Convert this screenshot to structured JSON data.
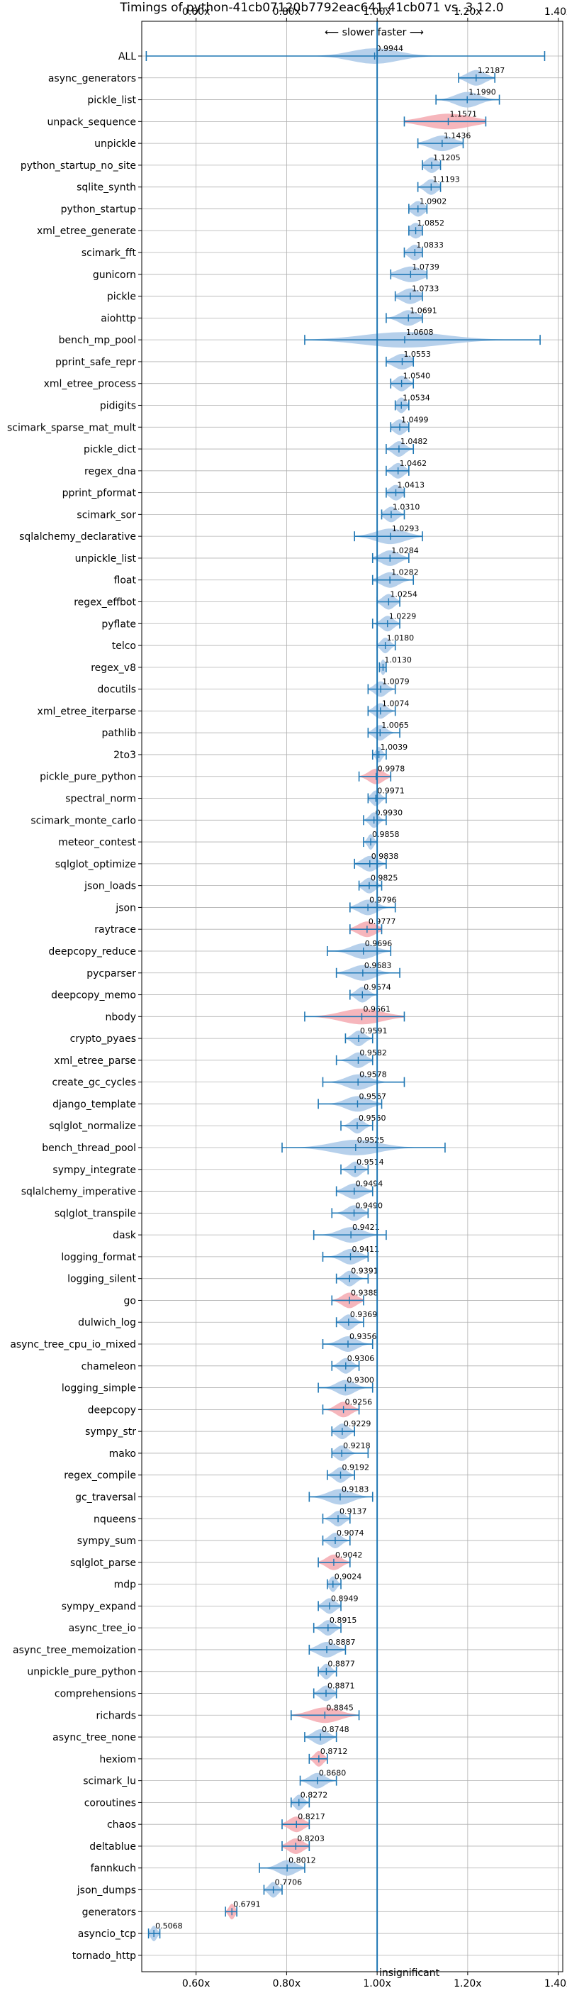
{
  "chart_data": {
    "type": "violin",
    "title": "Timings of python-41cb07120b7792eac641-41cb071 vs. 3.12.0",
    "direction_label": "⟵ slower   faster ⟶",
    "x_ticks": [
      "0.60x",
      "0.80x",
      "1.00x",
      "1.20x",
      "1.40x"
    ],
    "x_tick_values": [
      0.6,
      0.8,
      1.0,
      1.2,
      1.4
    ],
    "xlim": [
      0.48,
      1.41
    ],
    "reference_line": 1.0,
    "grid": true,
    "colors": {
      "faster": "#a9c8e8",
      "slower": "#f4a9b0",
      "line": "#1f77b4",
      "grid": "#b0b0b0"
    },
    "footnote": "insignificant",
    "benchmarks": [
      {
        "name": "ALL",
        "value": 0.9944,
        "label": "0.9944",
        "lo": 0.49,
        "hi": 1.37,
        "spread": 0.08,
        "slower": false
      },
      {
        "name": "async_generators",
        "value": 1.2187,
        "label": "1.2187",
        "lo": 1.18,
        "hi": 1.26,
        "spread": 0.03,
        "slower": false
      },
      {
        "name": "pickle_list",
        "value": 1.199,
        "label": "1.1990",
        "lo": 1.13,
        "hi": 1.27,
        "spread": 0.04,
        "slower": false
      },
      {
        "name": "unpack_sequence",
        "value": 1.1571,
        "label": "1.1571",
        "lo": 1.06,
        "hi": 1.24,
        "spread": 0.08,
        "slower": true
      },
      {
        "name": "unpickle",
        "value": 1.1436,
        "label": "1.1436",
        "lo": 1.09,
        "hi": 1.19,
        "spread": 0.04,
        "slower": false
      },
      {
        "name": "python_startup_no_site",
        "value": 1.1205,
        "label": "1.1205",
        "lo": 1.1,
        "hi": 1.14,
        "spread": 0.02,
        "slower": false
      },
      {
        "name": "sqlite_synth",
        "value": 1.1193,
        "label": "1.1193",
        "lo": 1.09,
        "hi": 1.14,
        "spread": 0.02,
        "slower": false
      },
      {
        "name": "python_startup",
        "value": 1.0902,
        "label": "1.0902",
        "lo": 1.07,
        "hi": 1.11,
        "spread": 0.02,
        "slower": false
      },
      {
        "name": "xml_etree_generate",
        "value": 1.0852,
        "label": "1.0852",
        "lo": 1.07,
        "hi": 1.1,
        "spread": 0.02,
        "slower": false
      },
      {
        "name": "scimark_fft",
        "value": 1.0833,
        "label": "1.0833",
        "lo": 1.06,
        "hi": 1.1,
        "spread": 0.02,
        "slower": false
      },
      {
        "name": "gunicorn",
        "value": 1.0739,
        "label": "1.0739",
        "lo": 1.03,
        "hi": 1.11,
        "spread": 0.04,
        "slower": false
      },
      {
        "name": "pickle",
        "value": 1.0733,
        "label": "1.0733",
        "lo": 1.04,
        "hi": 1.1,
        "spread": 0.03,
        "slower": false
      },
      {
        "name": "aiohttp",
        "value": 1.0691,
        "label": "1.0691",
        "lo": 1.02,
        "hi": 1.1,
        "spread": 0.03,
        "slower": false
      },
      {
        "name": "bench_mp_pool",
        "value": 1.0608,
        "label": "1.0608",
        "lo": 0.84,
        "hi": 1.36,
        "spread": 0.14,
        "slower": false
      },
      {
        "name": "pprint_safe_repr",
        "value": 1.0553,
        "label": "1.0553",
        "lo": 1.02,
        "hi": 1.08,
        "spread": 0.03,
        "slower": false
      },
      {
        "name": "xml_etree_process",
        "value": 1.054,
        "label": "1.0540",
        "lo": 1.03,
        "hi": 1.08,
        "spread": 0.02,
        "slower": false
      },
      {
        "name": "pidigits",
        "value": 1.0534,
        "label": "1.0534",
        "lo": 1.04,
        "hi": 1.07,
        "spread": 0.015,
        "slower": false
      },
      {
        "name": "scimark_sparse_mat_mult",
        "value": 1.0499,
        "label": "1.0499",
        "lo": 1.03,
        "hi": 1.07,
        "spread": 0.02,
        "slower": false
      },
      {
        "name": "pickle_dict",
        "value": 1.0482,
        "label": "1.0482",
        "lo": 1.02,
        "hi": 1.08,
        "spread": 0.02,
        "slower": false
      },
      {
        "name": "regex_dna",
        "value": 1.0462,
        "label": "1.0462",
        "lo": 1.02,
        "hi": 1.07,
        "spread": 0.02,
        "slower": false
      },
      {
        "name": "pprint_pformat",
        "value": 1.0413,
        "label": "1.0413",
        "lo": 1.02,
        "hi": 1.06,
        "spread": 0.02,
        "slower": false
      },
      {
        "name": "scimark_sor",
        "value": 1.031,
        "label": "1.0310",
        "lo": 1.01,
        "hi": 1.06,
        "spread": 0.02,
        "slower": false
      },
      {
        "name": "sqlalchemy_declarative",
        "value": 1.0293,
        "label": "1.0293",
        "lo": 0.95,
        "hi": 1.1,
        "spread": 0.05,
        "slower": false
      },
      {
        "name": "unpickle_list",
        "value": 1.0284,
        "label": "1.0284",
        "lo": 0.99,
        "hi": 1.07,
        "spread": 0.03,
        "slower": false
      },
      {
        "name": "float",
        "value": 1.0282,
        "label": "1.0282",
        "lo": 0.99,
        "hi": 1.08,
        "spread": 0.03,
        "slower": false
      },
      {
        "name": "regex_effbot",
        "value": 1.0254,
        "label": "1.0254",
        "lo": 1.0,
        "hi": 1.05,
        "spread": 0.02,
        "slower": false
      },
      {
        "name": "pyflate",
        "value": 1.0229,
        "label": "1.0229",
        "lo": 0.99,
        "hi": 1.05,
        "spread": 0.02,
        "slower": false
      },
      {
        "name": "telco",
        "value": 1.018,
        "label": "1.0180",
        "lo": 1.0,
        "hi": 1.04,
        "spread": 0.015,
        "slower": false
      },
      {
        "name": "regex_v8",
        "value": 1.013,
        "label": "1.0130",
        "lo": 1.005,
        "hi": 1.02,
        "spread": 0.008,
        "slower": false
      },
      {
        "name": "docutils",
        "value": 1.0079,
        "label": "1.0079",
        "lo": 0.98,
        "hi": 1.04,
        "spread": 0.02,
        "slower": false
      },
      {
        "name": "xml_etree_iterparse",
        "value": 1.0074,
        "label": "1.0074",
        "lo": 0.98,
        "hi": 1.04,
        "spread": 0.02,
        "slower": false
      },
      {
        "name": "pathlib",
        "value": 1.0065,
        "label": "1.0065",
        "lo": 0.98,
        "hi": 1.05,
        "spread": 0.02,
        "slower": false
      },
      {
        "name": "2to3",
        "value": 1.0039,
        "label": "1.0039",
        "lo": 0.99,
        "hi": 1.02,
        "spread": 0.01,
        "slower": false
      },
      {
        "name": "pickle_pure_python",
        "value": 0.9978,
        "label": "0.9978",
        "lo": 0.96,
        "hi": 1.03,
        "spread": 0.025,
        "slower": true
      },
      {
        "name": "spectral_norm",
        "value": 0.9971,
        "label": "0.9971",
        "lo": 0.98,
        "hi": 1.02,
        "spread": 0.015,
        "slower": false
      },
      {
        "name": "scimark_monte_carlo",
        "value": 0.993,
        "label": "0.9930",
        "lo": 0.97,
        "hi": 1.02,
        "spread": 0.015,
        "slower": false
      },
      {
        "name": "meteor_contest",
        "value": 0.9858,
        "label": "0.9858",
        "lo": 0.97,
        "hi": 1.0,
        "spread": 0.01,
        "slower": false
      },
      {
        "name": "sqlglot_optimize",
        "value": 0.9838,
        "label": "0.9838",
        "lo": 0.95,
        "hi": 1.02,
        "spread": 0.025,
        "slower": false
      },
      {
        "name": "json_loads",
        "value": 0.9825,
        "label": "0.9825",
        "lo": 0.96,
        "hi": 1.01,
        "spread": 0.02,
        "slower": false
      },
      {
        "name": "json",
        "value": 0.9796,
        "label": "0.9796",
        "lo": 0.94,
        "hi": 1.04,
        "spread": 0.03,
        "slower": false
      },
      {
        "name": "raytrace",
        "value": 0.9777,
        "label": "0.9777",
        "lo": 0.94,
        "hi": 1.01,
        "spread": 0.03,
        "slower": true
      },
      {
        "name": "deepcopy_reduce",
        "value": 0.9696,
        "label": "0.9696",
        "lo": 0.89,
        "hi": 1.03,
        "spread": 0.04,
        "slower": false
      },
      {
        "name": "pycparser",
        "value": 0.9683,
        "label": "0.9683",
        "lo": 0.91,
        "hi": 1.05,
        "spread": 0.04,
        "slower": false
      },
      {
        "name": "deepcopy_memo",
        "value": 0.9674,
        "label": "0.9674",
        "lo": 0.94,
        "hi": 1.0,
        "spread": 0.02,
        "slower": false
      },
      {
        "name": "nbody",
        "value": 0.9661,
        "label": "0.9661",
        "lo": 0.84,
        "hi": 1.06,
        "spread": 0.07,
        "slower": true
      },
      {
        "name": "crypto_pyaes",
        "value": 0.9591,
        "label": "0.9591",
        "lo": 0.93,
        "hi": 0.99,
        "spread": 0.02,
        "slower": false
      },
      {
        "name": "xml_etree_parse",
        "value": 0.9582,
        "label": "0.9582",
        "lo": 0.91,
        "hi": 0.99,
        "spread": 0.025,
        "slower": false
      },
      {
        "name": "create_gc_cycles",
        "value": 0.9578,
        "label": "0.9578",
        "lo": 0.88,
        "hi": 1.06,
        "spread": 0.04,
        "slower": false
      },
      {
        "name": "django_template",
        "value": 0.9567,
        "label": "0.9567",
        "lo": 0.87,
        "hi": 1.01,
        "spread": 0.04,
        "slower": false
      },
      {
        "name": "sqlglot_normalize",
        "value": 0.956,
        "label": "0.9560",
        "lo": 0.92,
        "hi": 0.99,
        "spread": 0.02,
        "slower": false
      },
      {
        "name": "bench_thread_pool",
        "value": 0.9525,
        "label": "0.9525",
        "lo": 0.79,
        "hi": 1.15,
        "spread": 0.08,
        "slower": false
      },
      {
        "name": "sympy_integrate",
        "value": 0.9514,
        "label": "0.9514",
        "lo": 0.92,
        "hi": 0.98,
        "spread": 0.02,
        "slower": false
      },
      {
        "name": "sqlalchemy_imperative",
        "value": 0.9494,
        "label": "0.9494",
        "lo": 0.91,
        "hi": 0.99,
        "spread": 0.03,
        "slower": false
      },
      {
        "name": "sqlglot_transpile",
        "value": 0.949,
        "label": "0.9490",
        "lo": 0.9,
        "hi": 0.98,
        "spread": 0.025,
        "slower": false
      },
      {
        "name": "dask",
        "value": 0.9421,
        "label": "0.9421",
        "lo": 0.86,
        "hi": 1.02,
        "spread": 0.04,
        "slower": false
      },
      {
        "name": "logging_format",
        "value": 0.9411,
        "label": "0.9411",
        "lo": 0.88,
        "hi": 0.98,
        "spread": 0.03,
        "slower": false
      },
      {
        "name": "logging_silent",
        "value": 0.9391,
        "label": "0.9391",
        "lo": 0.91,
        "hi": 0.98,
        "spread": 0.02,
        "slower": false
      },
      {
        "name": "go",
        "value": 0.9388,
        "label": "0.9388",
        "lo": 0.9,
        "hi": 0.97,
        "spread": 0.025,
        "slower": true
      },
      {
        "name": "dulwich_log",
        "value": 0.9369,
        "label": "0.9369",
        "lo": 0.91,
        "hi": 0.97,
        "spread": 0.02,
        "slower": false
      },
      {
        "name": "async_tree_cpu_io_mixed",
        "value": 0.9356,
        "label": "0.9356",
        "lo": 0.88,
        "hi": 0.99,
        "spread": 0.03,
        "slower": false
      },
      {
        "name": "chameleon",
        "value": 0.9306,
        "label": "0.9306",
        "lo": 0.9,
        "hi": 0.96,
        "spread": 0.02,
        "slower": false
      },
      {
        "name": "logging_simple",
        "value": 0.93,
        "label": "0.9300",
        "lo": 0.87,
        "hi": 0.99,
        "spread": 0.03,
        "slower": false
      },
      {
        "name": "deepcopy",
        "value": 0.9256,
        "label": "0.9256",
        "lo": 0.88,
        "hi": 0.96,
        "spread": 0.025,
        "slower": true
      },
      {
        "name": "sympy_str",
        "value": 0.9229,
        "label": "0.9229",
        "lo": 0.9,
        "hi": 0.95,
        "spread": 0.02,
        "slower": false
      },
      {
        "name": "mako",
        "value": 0.9218,
        "label": "0.9218",
        "lo": 0.9,
        "hi": 0.98,
        "spread": 0.02,
        "slower": false
      },
      {
        "name": "regex_compile",
        "value": 0.9192,
        "label": "0.9192",
        "lo": 0.89,
        "hi": 0.95,
        "spread": 0.02,
        "slower": false
      },
      {
        "name": "gc_traversal",
        "value": 0.9183,
        "label": "0.9183",
        "lo": 0.85,
        "hi": 0.99,
        "spread": 0.04,
        "slower": false
      },
      {
        "name": "nqueens",
        "value": 0.9137,
        "label": "0.9137",
        "lo": 0.88,
        "hi": 0.94,
        "spread": 0.02,
        "slower": false
      },
      {
        "name": "sympy_sum",
        "value": 0.9074,
        "label": "0.9074",
        "lo": 0.88,
        "hi": 0.94,
        "spread": 0.02,
        "slower": false
      },
      {
        "name": "sqlglot_parse",
        "value": 0.9042,
        "label": "0.9042",
        "lo": 0.87,
        "hi": 0.94,
        "spread": 0.025,
        "slower": true
      },
      {
        "name": "mdp",
        "value": 0.9024,
        "label": "0.9024",
        "lo": 0.89,
        "hi": 0.92,
        "spread": 0.012,
        "slower": false
      },
      {
        "name": "sympy_expand",
        "value": 0.8949,
        "label": "0.8949",
        "lo": 0.87,
        "hi": 0.92,
        "spread": 0.02,
        "slower": false
      },
      {
        "name": "async_tree_io",
        "value": 0.8915,
        "label": "0.8915",
        "lo": 0.86,
        "hi": 0.92,
        "spread": 0.02,
        "slower": false
      },
      {
        "name": "async_tree_memoization",
        "value": 0.8887,
        "label": "0.8887",
        "lo": 0.85,
        "hi": 0.93,
        "spread": 0.03,
        "slower": false
      },
      {
        "name": "unpickle_pure_python",
        "value": 0.8877,
        "label": "0.8877",
        "lo": 0.87,
        "hi": 0.91,
        "spread": 0.015,
        "slower": false
      },
      {
        "name": "comprehensions",
        "value": 0.8871,
        "label": "0.8871",
        "lo": 0.86,
        "hi": 0.91,
        "spread": 0.02,
        "slower": false
      },
      {
        "name": "richards",
        "value": 0.8845,
        "label": "0.8845",
        "lo": 0.81,
        "hi": 0.96,
        "spread": 0.05,
        "slower": true
      },
      {
        "name": "async_tree_none",
        "value": 0.8748,
        "label": "0.8748",
        "lo": 0.84,
        "hi": 0.91,
        "spread": 0.025,
        "slower": false
      },
      {
        "name": "hexiom",
        "value": 0.8712,
        "label": "0.8712",
        "lo": 0.85,
        "hi": 0.89,
        "spread": 0.015,
        "slower": true
      },
      {
        "name": "scimark_lu",
        "value": 0.868,
        "label": "0.8680",
        "lo": 0.83,
        "hi": 0.91,
        "spread": 0.025,
        "slower": false
      },
      {
        "name": "coroutines",
        "value": 0.8272,
        "label": "0.8272",
        "lo": 0.81,
        "hi": 0.85,
        "spread": 0.015,
        "slower": false
      },
      {
        "name": "chaos",
        "value": 0.8217,
        "label": "0.8217",
        "lo": 0.79,
        "hi": 0.85,
        "spread": 0.025,
        "slower": true
      },
      {
        "name": "deltablue",
        "value": 0.8203,
        "label": "0.8203",
        "lo": 0.79,
        "hi": 0.85,
        "spread": 0.025,
        "slower": true
      },
      {
        "name": "fannkuch",
        "value": 0.8012,
        "label": "0.8012",
        "lo": 0.74,
        "hi": 0.84,
        "spread": 0.03,
        "slower": false
      },
      {
        "name": "json_dumps",
        "value": 0.7706,
        "label": "0.7706",
        "lo": 0.75,
        "hi": 0.79,
        "spread": 0.015,
        "slower": false
      },
      {
        "name": "generators",
        "value": 0.6791,
        "label": "0.6791",
        "lo": 0.665,
        "hi": 0.69,
        "spread": 0.01,
        "slower": true
      },
      {
        "name": "asyncio_tcp",
        "value": 0.5068,
        "label": "0.5068",
        "lo": 0.495,
        "hi": 0.52,
        "spread": 0.01,
        "slower": false
      },
      {
        "name": "tornado_http",
        "value": null,
        "label": "",
        "lo": null,
        "hi": null,
        "spread": null,
        "slower": false
      }
    ]
  }
}
